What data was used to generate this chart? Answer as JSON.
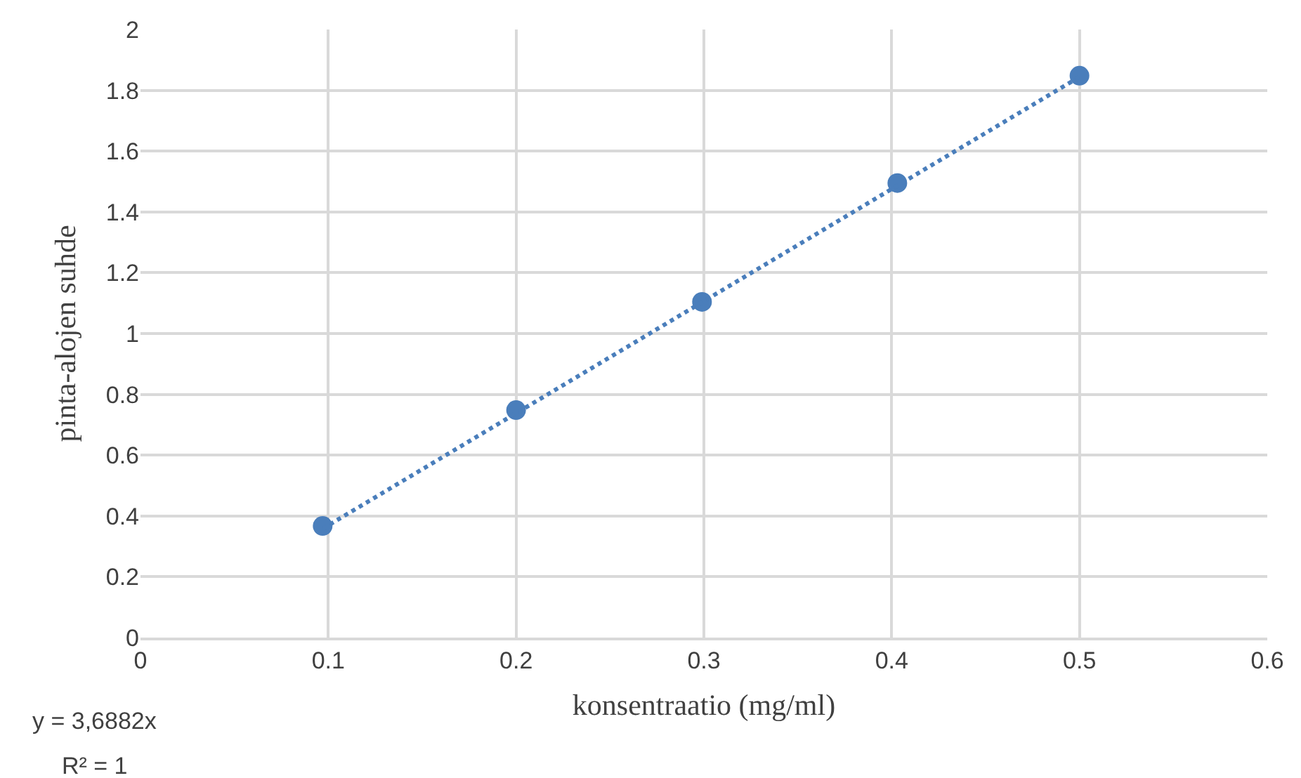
{
  "chart_data": {
    "type": "scatter",
    "xlabel": "konsentraatio (mg/ml)",
    "ylabel": "pinta-alojen suhde",
    "series": [
      {
        "color": "#4a7ebb",
        "marker": "circle",
        "x": [
          0.097,
          0.2,
          0.299,
          0.403,
          0.5
        ],
        "values": [
          0.367,
          0.748,
          1.104,
          1.495,
          1.848
        ]
      },
      {
        "type": "line",
        "color": "#4a7ebb",
        "line_style": "dotted",
        "marker": "none",
        "x": [
          0.097,
          0.5
        ],
        "values": [
          0.358,
          1.844
        ]
      }
    ],
    "xlim": [
      0,
      0.6
    ],
    "xticks": [
      0,
      0.1,
      0.2,
      0.3,
      0.4,
      0.5,
      0.6
    ],
    "ylim": [
      0,
      2
    ],
    "yticks": [
      0,
      0.2,
      0.4,
      0.6,
      0.8,
      1,
      1.2,
      1.4,
      1.6,
      1.8,
      2
    ],
    "grid": true,
    "annotations": [
      "y = 3,6882x",
      "R² = 1"
    ]
  }
}
